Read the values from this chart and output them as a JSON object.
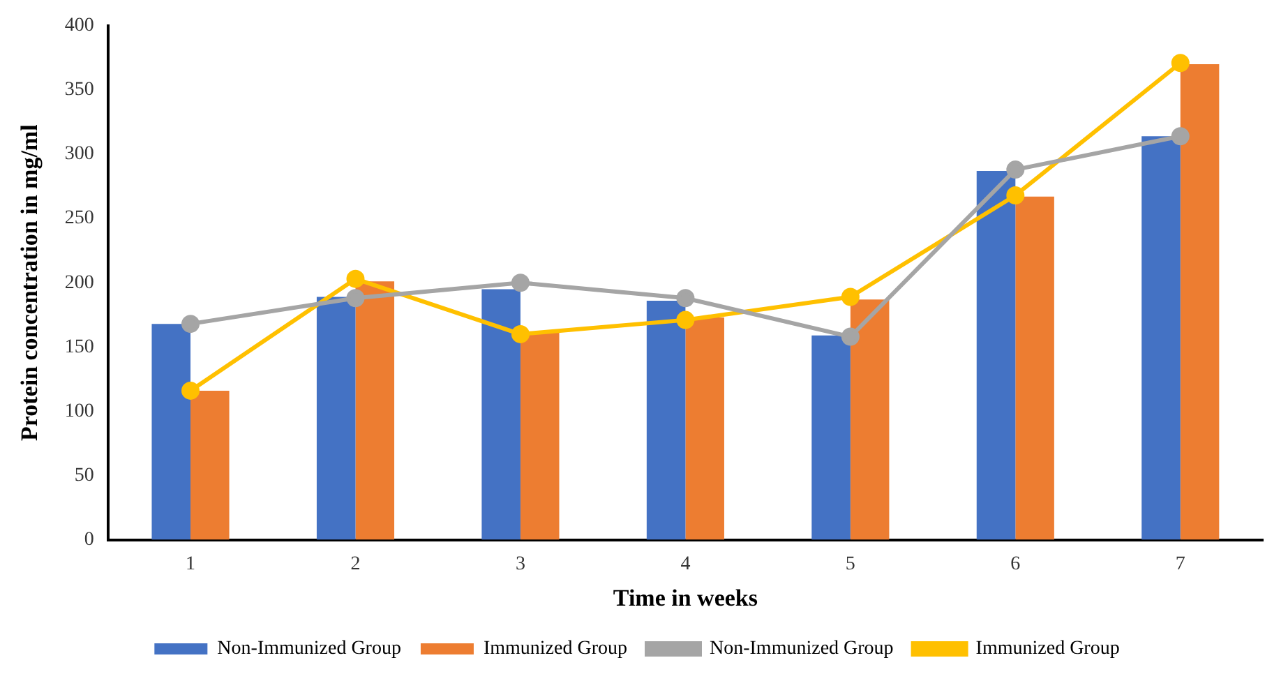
{
  "chart_data": {
    "type": "bar",
    "xlabel": "Time in weeks",
    "ylabel": "Protein concentration in mg/ml",
    "categories": [
      "1",
      "2",
      "3",
      "4",
      "5",
      "6",
      "7"
    ],
    "series": [
      {
        "name": "Non-Immunized Group",
        "color": "#4472c4",
        "values": [
          168,
          189,
          195,
          186,
          159,
          287,
          314
        ]
      },
      {
        "name": "Immunized Group",
        "color": "#ed7d31",
        "values": [
          116,
          201,
          161,
          173,
          187,
          267,
          370
        ]
      },
      {
        "name": "Non-Immunized Group",
        "type": "line",
        "color": "#a5a5a5",
        "values": [
          168,
          188,
          200,
          188,
          158,
          288,
          314
        ]
      },
      {
        "name": "Immunized Group",
        "type": "line",
        "color": "#ffc000",
        "values": [
          116,
          203,
          160,
          171,
          189,
          268,
          371
        ]
      }
    ],
    "ylim": [
      0,
      400
    ],
    "yticks": [
      0,
      50,
      100,
      150,
      200,
      250,
      300,
      350,
      400
    ],
    "grid": false,
    "legend": "bottom",
    "marker": "circle"
  }
}
